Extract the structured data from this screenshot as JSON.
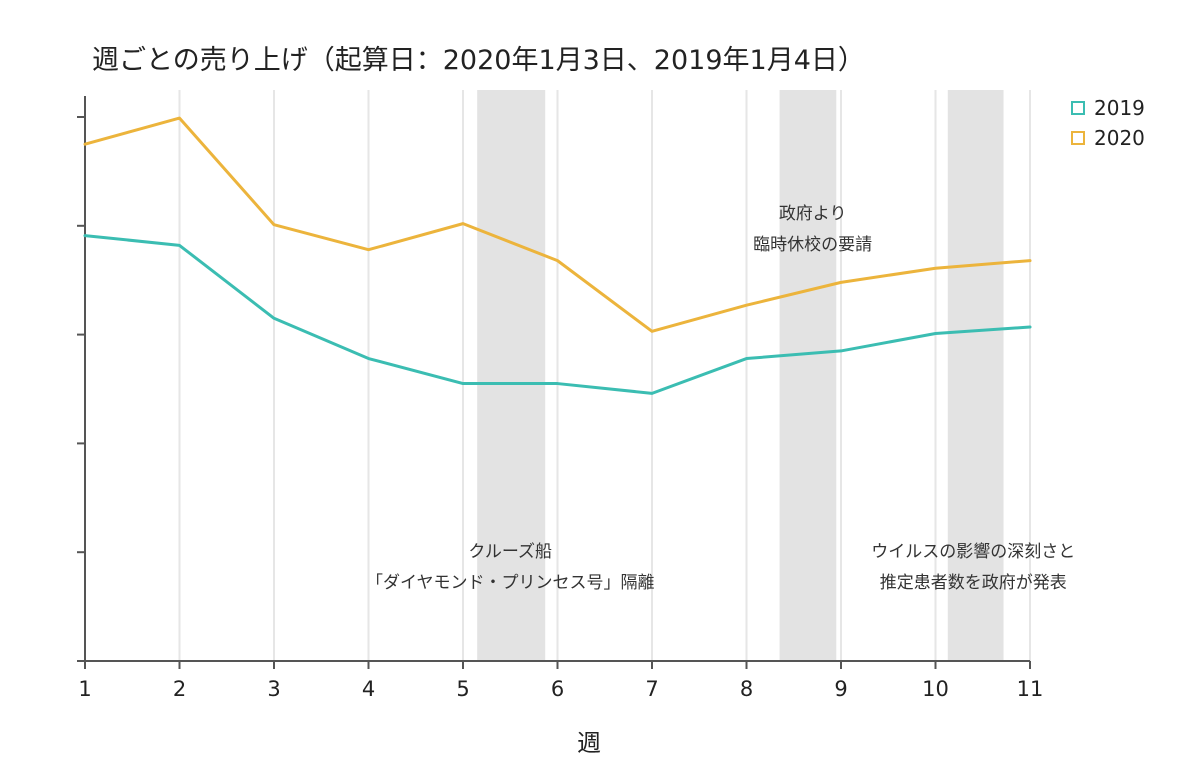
{
  "chart_data": {
    "type": "line",
    "title": "週ごとの売り上げ（起算日：2020年1月3日、2019年1月4日）",
    "xlabel": "週",
    "ylabel": "",
    "x": [
      1,
      2,
      3,
      4,
      5,
      6,
      7,
      8,
      9,
      10,
      11
    ],
    "xlim": [
      1,
      11
    ],
    "ylim": [
      0,
      5
    ],
    "yticks_labeled": false,
    "grid": "vertical",
    "legend_position": "top-right",
    "series": [
      {
        "name": "2019",
        "color": "#3bbdb2",
        "values": [
          3.91,
          3.82,
          3.15,
          2.78,
          2.55,
          2.55,
          2.46,
          2.78,
          2.85,
          3.01,
          3.07
        ]
      },
      {
        "name": "2020",
        "color": "#ecb43c",
        "values": [
          4.75,
          4.99,
          4.01,
          3.78,
          4.02,
          3.68,
          3.03,
          3.27,
          3.48,
          3.61,
          3.68
        ]
      }
    ],
    "shaded_regions": [
      {
        "from": 5.15,
        "to": 5.87
      },
      {
        "from": 8.35,
        "to": 8.95
      },
      {
        "from": 10.13,
        "to": 10.72
      }
    ],
    "annotations": [
      {
        "lines": [
          "クルーズ船",
          "「ダイヤモンド・プリンセス号」隔離"
        ],
        "x": 5.5,
        "y_level": "lower"
      },
      {
        "lines": [
          "政府より",
          "臨時休校の要請"
        ],
        "x": 8.7,
        "y_level": "upper"
      },
      {
        "lines": [
          "ウイルスの影響の深刻さと",
          "推定患者数を政府が発表"
        ],
        "x": 10.4,
        "y_level": "lower"
      }
    ]
  }
}
